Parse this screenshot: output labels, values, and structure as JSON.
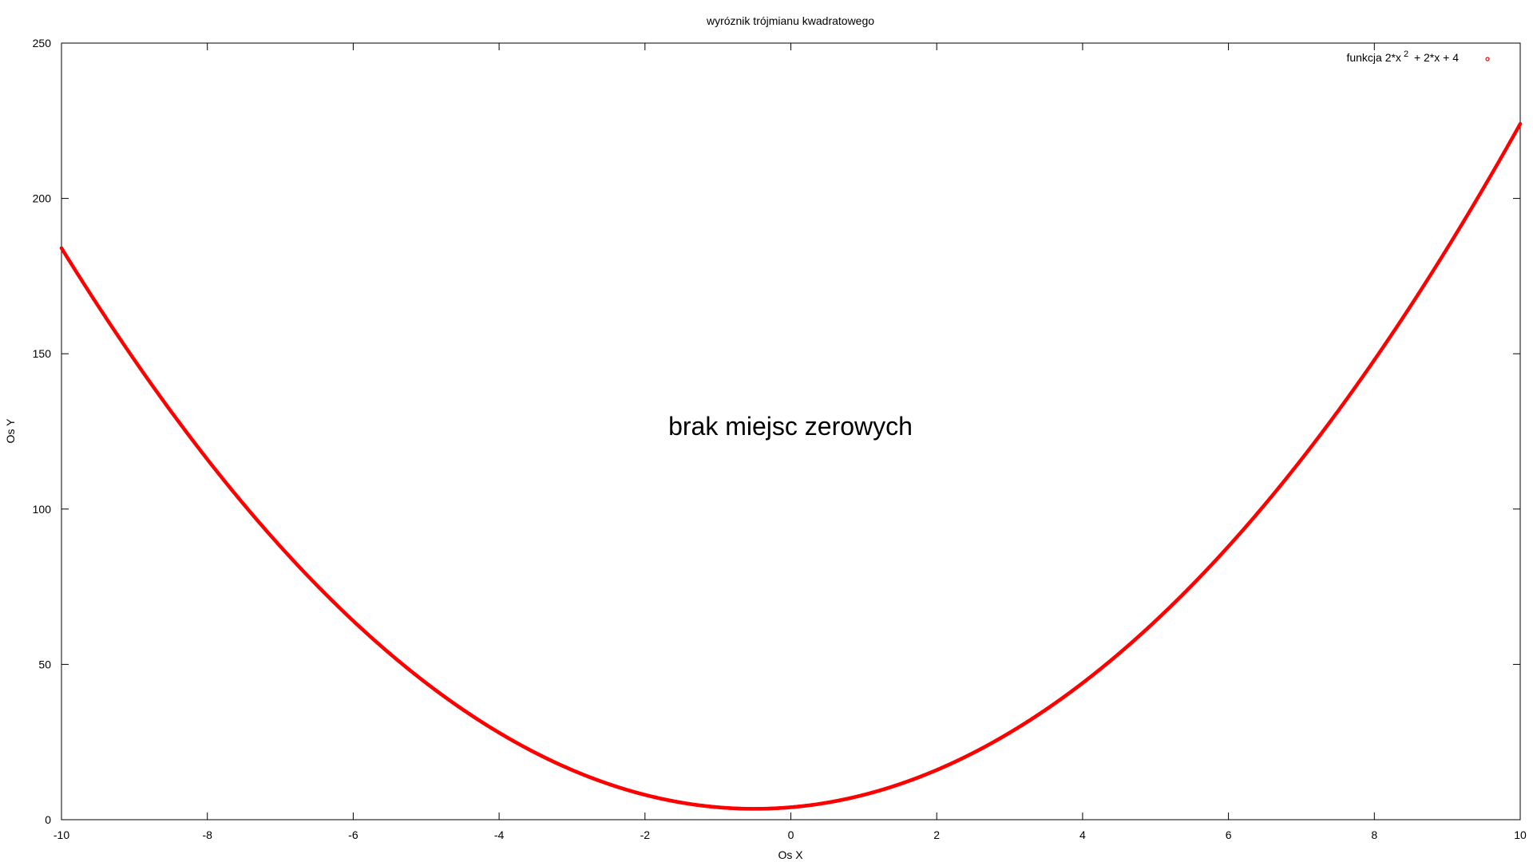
{
  "chart_data": {
    "type": "scatter",
    "title": "wyróznik trójmianu kwadratowego",
    "xlabel": "Os X",
    "ylabel": "Os Y",
    "xlim": [
      -10,
      10
    ],
    "ylim": [
      0,
      250
    ],
    "x_ticks": [
      "-10",
      "-8",
      "-6",
      "-4",
      "-2",
      "0",
      "2",
      "4",
      "6",
      "8",
      "10"
    ],
    "y_ticks": [
      "0",
      "50",
      "100",
      "150",
      "200",
      "250"
    ],
    "grid": false,
    "legend_position": "top-right",
    "annotation": "brak miejsc zerowych",
    "series": [
      {
        "name_prefix": "funkcja 2*x",
        "name_superscript": "2",
        "name_suffix": " + 2*x + 4",
        "color": "#ff0000",
        "function": {
          "a": 2,
          "b": 2,
          "c": 4
        }
      }
    ]
  }
}
